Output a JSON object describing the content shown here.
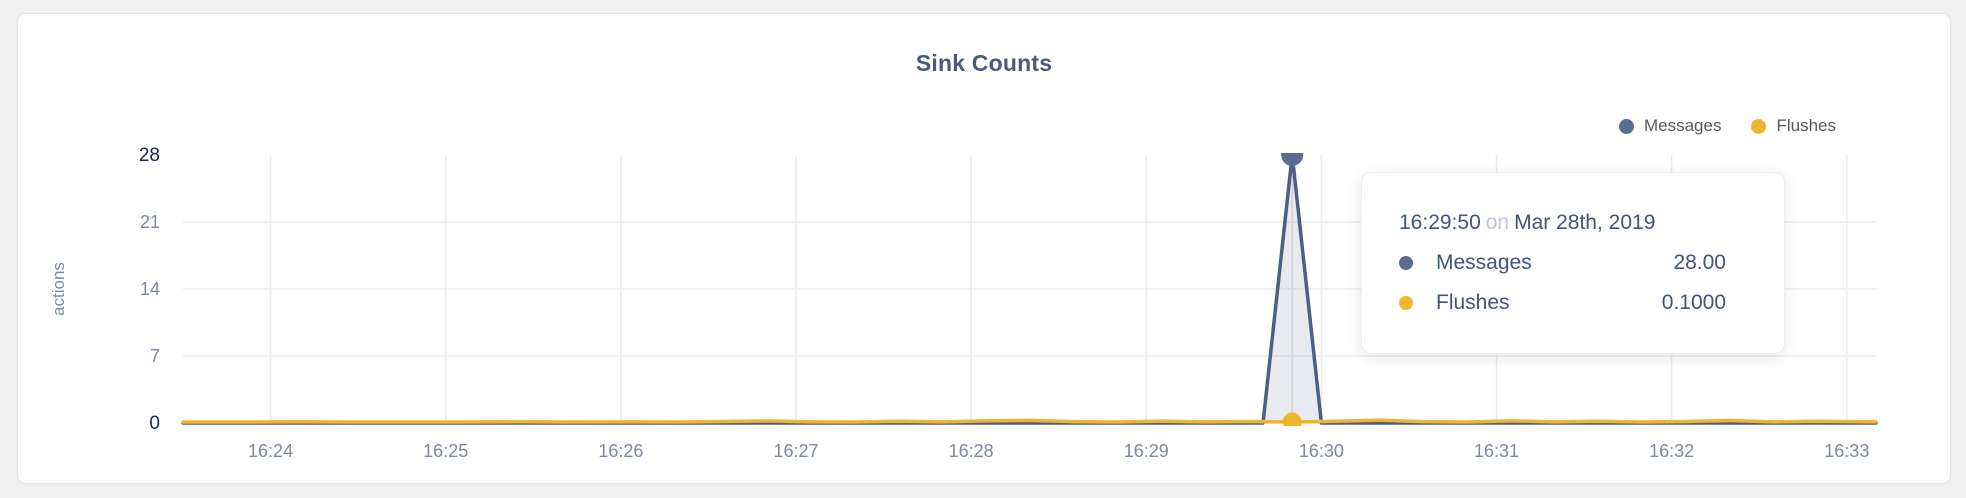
{
  "card": {
    "title": "Sink Counts"
  },
  "legend": {
    "items": [
      {
        "label": "Messages",
        "color": "#5b6c92"
      },
      {
        "label": "Flushes",
        "color": "#efb52e"
      }
    ]
  },
  "tooltip": {
    "time": "16:29:50",
    "separator": "on",
    "date": "Mar 28th, 2019",
    "rows": [
      {
        "label": "Messages",
        "value": "28.00",
        "color": "#5b6c92"
      },
      {
        "label": "Flushes",
        "value": "0.1000",
        "color": "#efb52e"
      }
    ]
  },
  "chart_data": {
    "type": "area",
    "title": "Sink Counts",
    "xlabel": "",
    "ylabel": "actions",
    "ylim": [
      0,
      28
    ],
    "y_ticks": [
      0,
      7,
      14,
      21,
      28
    ],
    "y_tick_emphasis": [
      0,
      28
    ],
    "grid": true,
    "legend_position": "top-right",
    "x_domain_seconds": [
      0,
      580
    ],
    "x_start_time": "16:23:29",
    "x_ticks": [
      "16:24",
      "16:25",
      "16:26",
      "16:27",
      "16:28",
      "16:29",
      "16:30",
      "16:31",
      "16:32",
      "16:33"
    ],
    "x_tick_seconds": [
      30,
      90,
      150,
      210,
      270,
      330,
      390,
      450,
      510,
      570
    ],
    "hover": {
      "x_seconds": 380,
      "time": "16:29:50"
    },
    "series": [
      {
        "name": "Messages",
        "color": "#4d5e86",
        "marker_color": "#5b6c92",
        "fill": "rgba(99,113,150,0.15)",
        "hover_value": 28.0,
        "marker_radius": 11,
        "points": [
          [
            0,
            0
          ],
          [
            370,
            0
          ],
          [
            380,
            28
          ],
          [
            390,
            0
          ],
          [
            580,
            0
          ]
        ]
      },
      {
        "name": "Flushes",
        "color": "#efb52e",
        "marker_color": "#efb52e",
        "fill": null,
        "hover_value": 0.1,
        "marker_radius": 9.5,
        "points": [
          [
            0,
            0.1
          ],
          [
            20,
            0.1
          ],
          [
            40,
            0.13
          ],
          [
            55,
            0.1
          ],
          [
            75,
            0.11
          ],
          [
            95,
            0.1
          ],
          [
            115,
            0.14
          ],
          [
            130,
            0.1
          ],
          [
            150,
            0.12
          ],
          [
            170,
            0.1
          ],
          [
            185,
            0.16
          ],
          [
            200,
            0.22
          ],
          [
            215,
            0.12
          ],
          [
            230,
            0.1
          ],
          [
            245,
            0.18
          ],
          [
            260,
            0.12
          ],
          [
            275,
            0.22
          ],
          [
            290,
            0.28
          ],
          [
            305,
            0.14
          ],
          [
            320,
            0.1
          ],
          [
            335,
            0.2
          ],
          [
            350,
            0.12
          ],
          [
            365,
            0.16
          ],
          [
            380,
            0.1
          ],
          [
            395,
            0.18
          ],
          [
            410,
            0.3
          ],
          [
            425,
            0.14
          ],
          [
            440,
            0.1
          ],
          [
            455,
            0.22
          ],
          [
            470,
            0.12
          ],
          [
            485,
            0.18
          ],
          [
            500,
            0.1
          ],
          [
            515,
            0.16
          ],
          [
            530,
            0.26
          ],
          [
            545,
            0.12
          ],
          [
            560,
            0.18
          ],
          [
            580,
            0.12
          ]
        ]
      }
    ],
    "colors": {
      "grid": "#ececee",
      "baseline": "#e6e6e8",
      "crosshair": "#d6d7da",
      "tick": "#7d88a3",
      "tick_emphasis": "#17254e",
      "axis_label": "#7d88a3"
    }
  }
}
